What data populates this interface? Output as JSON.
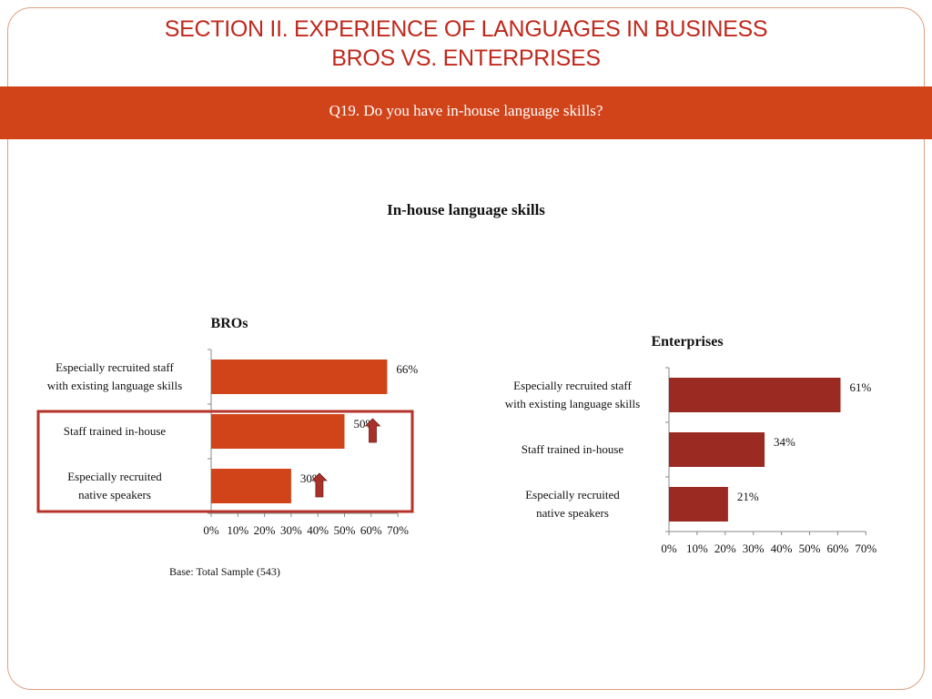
{
  "header": {
    "title_line1": "SECTION II. EXPERIENCE OF LANGUAGES IN BUSINESS",
    "title_line2": "BROS VS. ENTERPRISES"
  },
  "question": "Q19. Do you have in-house language skills?",
  "figure_title": "In-house language skills",
  "base_note": "Base: Total Sample (543)",
  "colors": {
    "accent": "#d1441a",
    "title": "#c0281c",
    "bros_bar": "#d1441a",
    "enterprise_bar": "#9b2a22",
    "highlight_box": "#b5332a",
    "arrow": "#a8312a"
  },
  "chart_data": [
    {
      "type": "bar",
      "orientation": "horizontal",
      "title": "BROs",
      "categories": [
        "Especially recruited staff with existing language skills",
        "Staff trained in-house",
        "Especially recruited native speakers"
      ],
      "values": [
        66,
        50,
        30
      ],
      "value_labels": [
        "66%",
        "50%",
        "30%"
      ],
      "xlim": [
        0,
        70
      ],
      "xticks": [
        "0%",
        "10%",
        "20%",
        "30%",
        "40%",
        "50%",
        "60%",
        "70%"
      ],
      "highlighted_categories": [
        "Staff trained in-house",
        "Especially recruited native speakers"
      ],
      "up_arrows_on": [
        "Staff trained in-house",
        "Especially recruited native speakers"
      ]
    },
    {
      "type": "bar",
      "orientation": "horizontal",
      "title": "Enterprises",
      "categories": [
        "Especially recruited staff with existing language skills",
        "Staff trained in-house",
        "Especially recruited native speakers"
      ],
      "values": [
        61,
        34,
        21
      ],
      "value_labels": [
        "61%",
        "34%",
        "21%"
      ],
      "xlim": [
        0,
        70
      ],
      "xticks": [
        "0%",
        "10%",
        "20%",
        "30%",
        "40%",
        "50%",
        "60%",
        "70%"
      ]
    }
  ]
}
